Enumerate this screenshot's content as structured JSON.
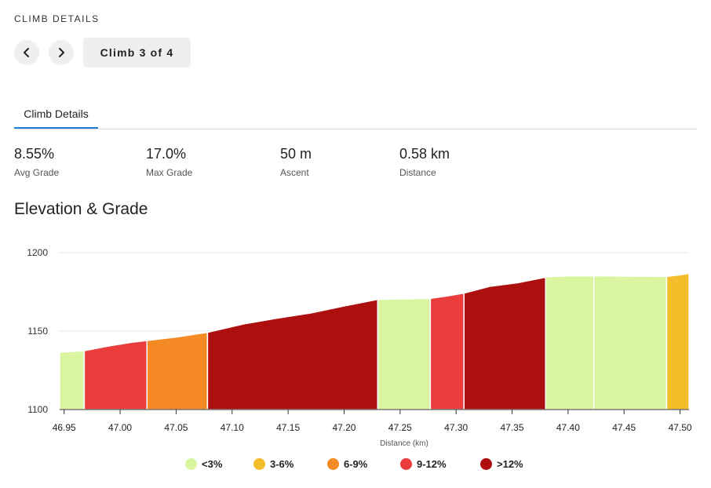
{
  "header": {
    "section_label": "CLIMB DETAILS",
    "climb_label": "Climb 3 of 4"
  },
  "icons": {
    "prev": "chevron-left-icon",
    "next": "chevron-right-icon"
  },
  "tabs": [
    {
      "label": "Climb Details",
      "active": true
    }
  ],
  "accent_color": "#1f7fd6",
  "stats": [
    {
      "value": "8.55%",
      "label": "Avg Grade"
    },
    {
      "value": "17.0%",
      "label": "Max Grade"
    },
    {
      "value": "50 m",
      "label": "Ascent"
    },
    {
      "value": "0.58 km",
      "label": "Distance"
    }
  ],
  "chart_title": "Elevation & Grade",
  "chart_data": {
    "type": "area",
    "xlabel": "Distance (km)",
    "ylabel": "",
    "xlim": [
      46.946,
      47.508
    ],
    "ylim": [
      1100,
      1200
    ],
    "x_ticks": [
      "46.95",
      "47.00",
      "47.05",
      "47.10",
      "47.15",
      "47.20",
      "47.25",
      "47.30",
      "47.35",
      "47.40",
      "47.45",
      "47.50"
    ],
    "y_ticks": [
      "1100",
      "1150",
      "1200"
    ],
    "grid": true,
    "categories": {
      "lt3": {
        "label": "<3%",
        "color": "#d9f5a0"
      },
      "g3_6": {
        "label": "3-6%",
        "color": "#f4bd2a"
      },
      "g6_9": {
        "label": "6-9%",
        "color": "#f58a25"
      },
      "g9_12": {
        "label": "9-12%",
        "color": "#ea3c3c"
      },
      ">12": {
        "label": ">12%",
        "color": "#ad0f0f"
      }
    },
    "legend_order": [
      "lt3",
      "g3_6",
      "g6_9",
      "g9_12",
      ">12"
    ],
    "segments": [
      {
        "grade": "lt3",
        "points": [
          [
            46.946,
            1136.5
          ],
          [
            46.968,
            1137.5
          ]
        ]
      },
      {
        "grade": "g9_12",
        "points": [
          [
            46.968,
            1137.5
          ],
          [
            46.99,
            1140.5
          ],
          [
            47.01,
            1142.8
          ],
          [
            47.024,
            1144
          ]
        ]
      },
      {
        "grade": "g6_9",
        "points": [
          [
            47.024,
            1144
          ],
          [
            47.05,
            1146.2
          ],
          [
            47.078,
            1149.2
          ]
        ]
      },
      {
        "grade": ">12",
        "points": [
          [
            47.078,
            1149.2
          ],
          [
            47.11,
            1154.5
          ],
          [
            47.14,
            1158.2
          ],
          [
            47.17,
            1161.5
          ],
          [
            47.2,
            1166
          ],
          [
            47.23,
            1170.2
          ]
        ]
      },
      {
        "grade": "lt3",
        "points": [
          [
            47.23,
            1170.2
          ],
          [
            47.255,
            1170.5
          ],
          [
            47.277,
            1170.8
          ]
        ]
      },
      {
        "grade": "g9_12",
        "points": [
          [
            47.277,
            1170.8
          ],
          [
            47.293,
            1172.5
          ],
          [
            47.307,
            1174.2
          ]
        ]
      },
      {
        "grade": ">12",
        "points": [
          [
            47.307,
            1174.2
          ],
          [
            47.33,
            1178.5
          ],
          [
            47.355,
            1180.8
          ],
          [
            47.38,
            1184.3
          ]
        ]
      },
      {
        "grade": "lt3",
        "points": [
          [
            47.38,
            1184.6
          ],
          [
            47.4,
            1185.1
          ],
          [
            47.423,
            1185.2
          ]
        ]
      },
      {
        "grade": "lt3",
        "points": [
          [
            47.423,
            1185.2
          ],
          [
            47.455,
            1185
          ],
          [
            47.488,
            1184.8
          ]
        ]
      },
      {
        "grade": "g3_6",
        "points": [
          [
            47.488,
            1184.8
          ],
          [
            47.5,
            1185.8
          ],
          [
            47.508,
            1186.8
          ]
        ]
      }
    ]
  }
}
